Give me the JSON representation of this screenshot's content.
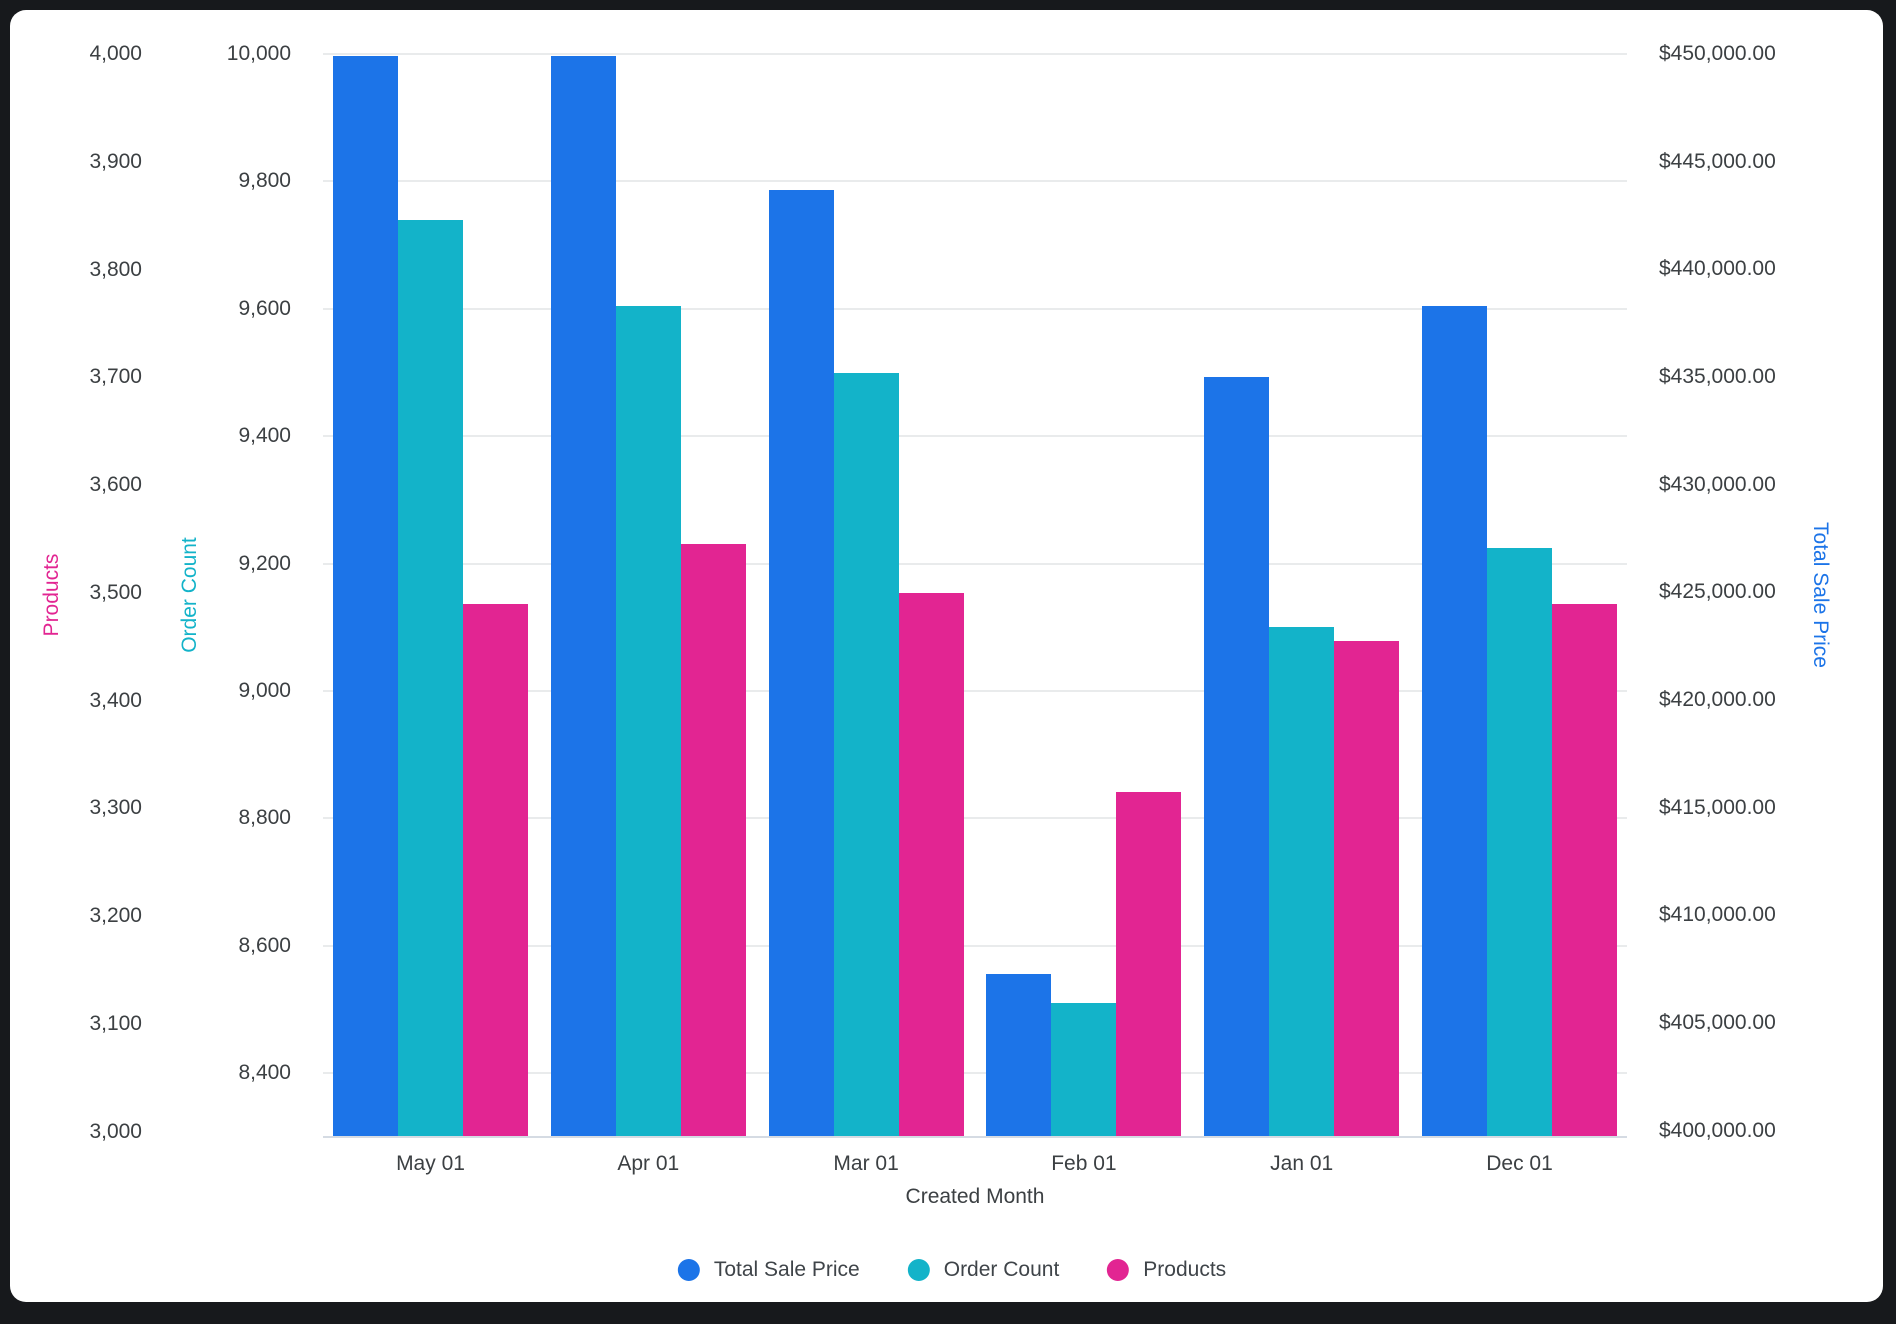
{
  "chart_data": {
    "type": "bar",
    "categories": [
      "May 01",
      "Apr 01",
      "Mar 01",
      "Feb 01",
      "Jan 01",
      "Dec 01"
    ],
    "xlabel": "Created Month",
    "series": [
      {
        "name": "Total Sale Price",
        "axis": "money",
        "color": "#1c74e8",
        "values": [
          449900,
          449900,
          443700,
          407250,
          435000,
          438300
        ]
      },
      {
        "name": "Order Count",
        "axis": "count",
        "color": "#13b3c9",
        "values": [
          9740,
          9605,
          9500,
          8510,
          9100,
          9225
        ]
      },
      {
        "name": "Products",
        "axis": "products",
        "color": "#e22592",
        "values": [
          3490,
          3545,
          3500,
          3315,
          3455,
          3490
        ]
      }
    ],
    "axes": {
      "products": {
        "title": "Products",
        "title_color": "#e22592",
        "min": 2995,
        "max": 4000,
        "ticks": [
          {
            "v": 3000,
            "label": "3,000"
          },
          {
            "v": 3100,
            "label": "3,100"
          },
          {
            "v": 3200,
            "label": "3,200"
          },
          {
            "v": 3300,
            "label": "3,300"
          },
          {
            "v": 3400,
            "label": "3,400"
          },
          {
            "v": 3500,
            "label": "3,500"
          },
          {
            "v": 3600,
            "label": "3,600"
          },
          {
            "v": 3700,
            "label": "3,700"
          },
          {
            "v": 3800,
            "label": "3,800"
          },
          {
            "v": 3900,
            "label": "3,900"
          },
          {
            "v": 4000,
            "label": "4,000"
          }
        ]
      },
      "count": {
        "title": "Order Count",
        "title_color": "#13b3c9",
        "min": 8300,
        "max": 10000,
        "gridlines": true,
        "ticks": [
          {
            "v": 8400,
            "label": "8,400"
          },
          {
            "v": 8600,
            "label": "8,600"
          },
          {
            "v": 8800,
            "label": "8,800"
          },
          {
            "v": 9000,
            "label": "9,000"
          },
          {
            "v": 9200,
            "label": "9,200"
          },
          {
            "v": 9400,
            "label": "9,400"
          },
          {
            "v": 9600,
            "label": "9,600"
          },
          {
            "v": 9800,
            "label": "9,800"
          },
          {
            "v": 10000,
            "label": "10,000"
          }
        ]
      },
      "money": {
        "title": "Total Sale Price",
        "title_color": "#1c74e8",
        "min": 399700,
        "max": 450000,
        "ticks": [
          {
            "v": 400000,
            "label": "$400,000.00"
          },
          {
            "v": 405000,
            "label": "$405,000.00"
          },
          {
            "v": 410000,
            "label": "$410,000.00"
          },
          {
            "v": 415000,
            "label": "$415,000.00"
          },
          {
            "v": 420000,
            "label": "$420,000.00"
          },
          {
            "v": 425000,
            "label": "$425,000.00"
          },
          {
            "v": 430000,
            "label": "$430,000.00"
          },
          {
            "v": 435000,
            "label": "$435,000.00"
          },
          {
            "v": 440000,
            "label": "$440,000.00"
          },
          {
            "v": 445000,
            "label": "$445,000.00"
          },
          {
            "v": 450000,
            "label": "$450,000.00"
          }
        ]
      }
    },
    "legend": [
      "Total Sale Price",
      "Order Count",
      "Products"
    ],
    "legend_position": "bottom",
    "grid": true,
    "style": {
      "text_color": "#3c4043",
      "gridline_color": "#e9ebec",
      "axis_line_color": "#d5dbe3",
      "frame_color": "#17191c",
      "card_color": "#ffffff"
    }
  }
}
